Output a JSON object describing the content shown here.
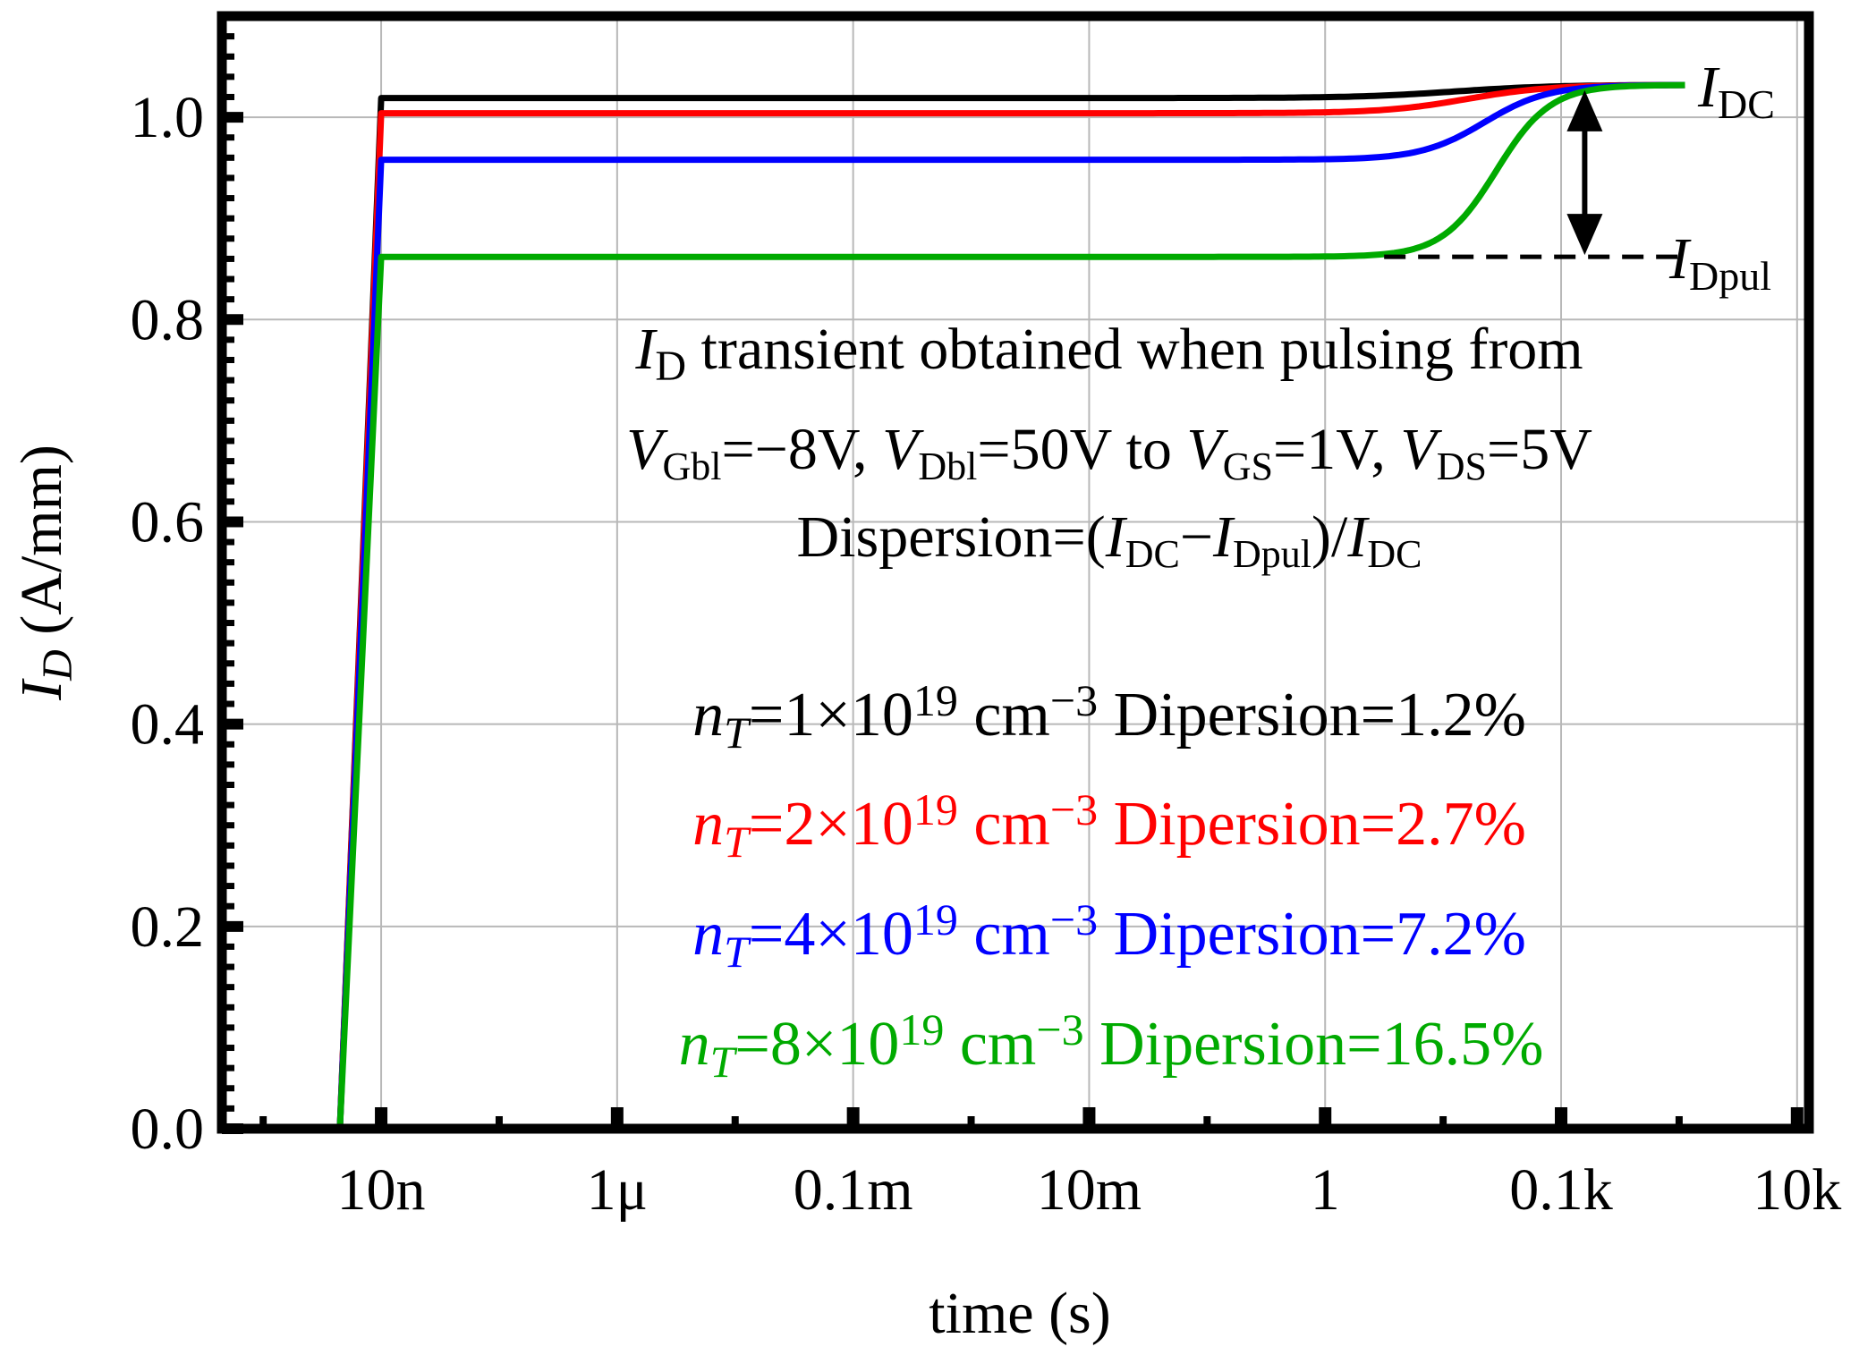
{
  "chart_data": {
    "type": "line",
    "xscale": "log",
    "xlim_exp": [
      -9.35,
      4.1
    ],
    "ylim": [
      0,
      1.1
    ],
    "xlabel": "time (s)",
    "ylabel": {
      "main": "I",
      "sub": "D",
      "rest": " (A/mm)"
    },
    "x_ticks": [
      {
        "exp": -8,
        "label": "10n"
      },
      {
        "exp": -6,
        "label": "1μ"
      },
      {
        "exp": -4,
        "label": "0.1m"
      },
      {
        "exp": -2,
        "label": "10m"
      },
      {
        "exp": 0,
        "label": "1"
      },
      {
        "exp": 2,
        "label": "0.1k"
      },
      {
        "exp": 4,
        "label": "10k"
      }
    ],
    "y_ticks": [
      {
        "value": 0.0,
        "label": "0.0"
      },
      {
        "value": 0.2,
        "label": "0.2"
      },
      {
        "value": 0.4,
        "label": "0.4"
      },
      {
        "value": 0.6,
        "label": "0.6"
      },
      {
        "value": 0.8,
        "label": "0.8"
      },
      {
        "value": 1.0,
        "label": "1.0"
      }
    ],
    "steady_state": 1.032,
    "turn_on_exp": -8.35,
    "rise_end_exp": -8.0,
    "end_exp": 3.05,
    "series": [
      {
        "name": "nT=1e19",
        "color": "#000000",
        "plateau": 1.019,
        "dispersion_pct": 1.2,
        "t_exp": 1.1,
        "width": 0.42
      },
      {
        "name": "nT=2e19",
        "color": "#ff0000",
        "plateau": 1.004,
        "dispersion_pct": 2.7,
        "t_exp": 1.2,
        "width": 0.35
      },
      {
        "name": "nT=4e19",
        "color": "#0000ff",
        "plateau": 0.958,
        "dispersion_pct": 7.2,
        "t_exp": 1.35,
        "width": 0.27
      },
      {
        "name": "nT=8e19",
        "color": "#00aa00",
        "plateau": 0.862,
        "dispersion_pct": 16.5,
        "t_exp": 1.45,
        "width": 0.23
      }
    ],
    "markers": {
      "idc_label": {
        "main": "I",
        "sub": "DC"
      },
      "idpul_label": {
        "main": "I",
        "sub": "Dpul"
      },
      "dashed_level": 0.862,
      "arrow_exp": 2.2
    },
    "annotation": {
      "line1": {
        "sym": "I",
        "sub": "D",
        "text": " transient obtained when pulsing from"
      },
      "line2": [
        {
          "sym": "V",
          "sub": "Gbl",
          "text": "=−8V, "
        },
        {
          "sym": "V",
          "sub": "Dbl",
          "text": "=50V to "
        },
        {
          "sym": "V",
          "sub": "GS",
          "text": "=1V, "
        },
        {
          "sym": "V",
          "sub": "DS",
          "text": "=5V"
        }
      ],
      "line3": {
        "prefix": "Dispersion=(",
        "a": {
          "sym": "I",
          "sub": "DC"
        },
        "minus": "−",
        "b": {
          "sym": "I",
          "sub": "Dpul"
        },
        "mid": ")/",
        "c": {
          "sym": "I",
          "sub": "DC"
        }
      }
    },
    "legend": [
      {
        "sym": "n",
        "sub": "T",
        "coef": "=1×10",
        "sup": "19",
        "unit": " cm",
        "unit_sup": "−3",
        "text": " Dipersion=1.2%",
        "color": "#000000"
      },
      {
        "sym": "n",
        "sub": "T",
        "coef": "=2×10",
        "sup": "19",
        "unit": " cm",
        "unit_sup": "−3",
        "text": " Dipersion=2.7%",
        "color": "#ff0000"
      },
      {
        "sym": "n",
        "sub": "T",
        "coef": "=4×10",
        "sup": "19",
        "unit": " cm",
        "unit_sup": "−3",
        "text": " Dipersion=7.2%",
        "color": "#0000ff"
      },
      {
        "sym": "n",
        "sub": "T",
        "coef": "=8×10",
        "sup": "19",
        "unit": " cm",
        "unit_sup": "−3",
        "text": " Dipersion=16.5%",
        "color": "#00aa00"
      }
    ]
  }
}
